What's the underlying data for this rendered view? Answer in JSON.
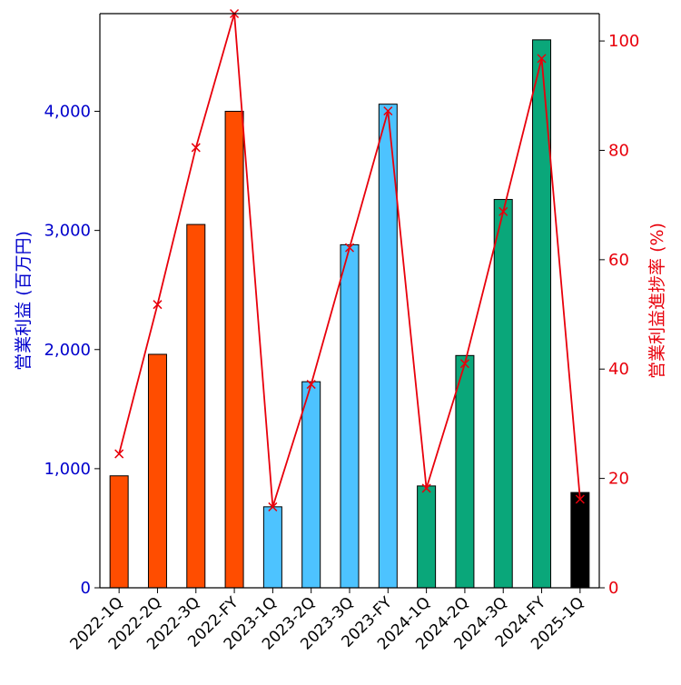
{
  "chart_data": {
    "type": "bar",
    "categories": [
      "2022-1Q",
      "2022-2Q",
      "2022-3Q",
      "2022-FY",
      "2023-1Q",
      "2023-2Q",
      "2023-3Q",
      "2023-FY",
      "2024-1Q",
      "2024-2Q",
      "2024-3Q",
      "2024-FY",
      "2025-1Q"
    ],
    "bar_colors": [
      "#ff4d00",
      "#ff4d00",
      "#ff4d00",
      "#ff4d00",
      "#4dc3ff",
      "#4dc3ff",
      "#4dc3ff",
      "#4dc3ff",
      "#0aa77a",
      "#0aa77a",
      "#0aa77a",
      "#0aa77a",
      "#000000"
    ],
    "series": [
      {
        "name": "営業利益",
        "axis": "left",
        "type": "bar",
        "values": [
          940,
          1960,
          3050,
          4000,
          680,
          1730,
          2880,
          4060,
          855,
          1950,
          3260,
          4600,
          800
        ]
      },
      {
        "name": "営業利益進捗率",
        "axis": "right",
        "type": "line",
        "marker": "x",
        "color": "#e8000b",
        "values": [
          24.5,
          51.8,
          80.5,
          105.0,
          14.8,
          37.2,
          62.2,
          87.2,
          18.2,
          41.0,
          68.8,
          96.8,
          16.2
        ]
      }
    ],
    "ylabel": "営業利益 (百万円)",
    "y2label": "営業利益進捗率 (%)",
    "ylim": [
      0,
      4820
    ],
    "y2lim": [
      0,
      105
    ],
    "yticks": [
      0,
      1000,
      2000,
      3000,
      4000
    ],
    "ytick_labels": [
      "0",
      "1,000",
      "2,000",
      "3,000",
      "4,000"
    ],
    "y2ticks": [
      0,
      20,
      40,
      60,
      80,
      100
    ],
    "y2tick_labels": [
      "0",
      "20",
      "40",
      "60",
      "80",
      "100"
    ],
    "left_axis_color": "#0000cc",
    "right_axis_color": "#e8000b",
    "grid": false
  }
}
